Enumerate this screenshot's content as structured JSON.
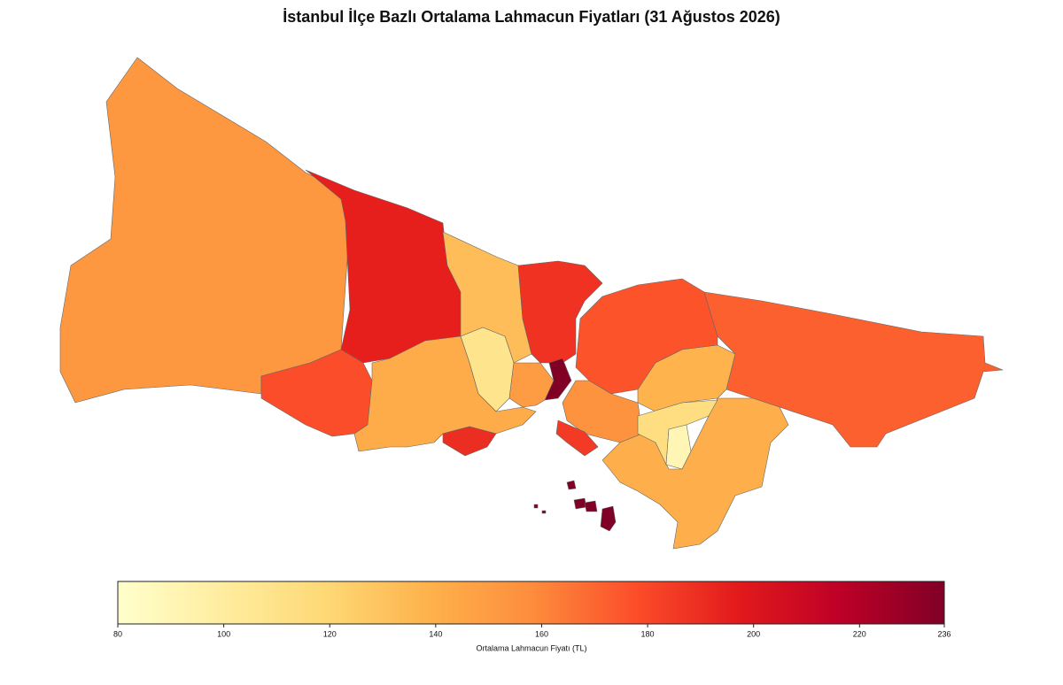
{
  "chart_data": {
    "type": "choropleth",
    "title": "İstanbul İlçe Bazlı Ortalama Lahmacun Fiyatları (31 Ağustos 2026)",
    "values": [
      152,
      195,
      178,
      133,
      188,
      236,
      108,
      142,
      190,
      150,
      176,
      172,
      138,
      155,
      185,
      140,
      114,
      90,
      236
    ],
    "colors": [
      "#ffffcc",
      "#ffeda0",
      "#fed976",
      "#feb24c",
      "#fd8d3c",
      "#fc4e2a",
      "#e31a1c",
      "#bd0026",
      "#800026"
    ],
    "colorbar": {
      "label": "Ortalama Lahmacun Fiyatı (TL)",
      "lim": [
        80,
        236
      ],
      "ticks": [
        80,
        100,
        120,
        140,
        160,
        180,
        200,
        220,
        236
      ]
    }
  }
}
